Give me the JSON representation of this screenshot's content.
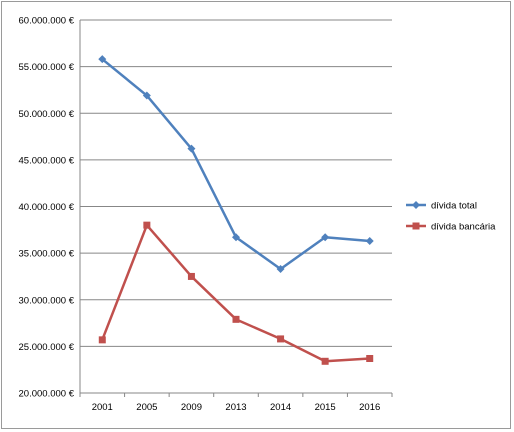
{
  "chart_data": {
    "type": "line",
    "categories": [
      "2001",
      "2005",
      "2009",
      "2013",
      "2014",
      "2015",
      "2016"
    ],
    "series": [
      {
        "name": "dívida total",
        "color": "#4f81bd",
        "marker": "diamond",
        "values": [
          55800000,
          51900000,
          46200000,
          36700000,
          33300000,
          36700000,
          36300000
        ]
      },
      {
        "name": "dívida bancária",
        "color": "#c0504d",
        "marker": "square",
        "values": [
          25700000,
          38000000,
          32500000,
          27900000,
          25800000,
          23400000,
          23700000
        ]
      }
    ],
    "ylim": [
      20000000,
      60000000
    ],
    "yticks": [
      20000000,
      25000000,
      30000000,
      35000000,
      40000000,
      45000000,
      50000000,
      55000000,
      60000000
    ],
    "ytick_labels": [
      "20.000.000 €",
      "25.000.000 €",
      "30.000.000 €",
      "35.000.000 €",
      "40.000.000 €",
      "45.000.000 €",
      "50.000.000 €",
      "55.000.000 €",
      "60.000.000 €"
    ],
    "grid": true,
    "legend_position": "right",
    "title": "",
    "xlabel": "",
    "ylabel": ""
  }
}
